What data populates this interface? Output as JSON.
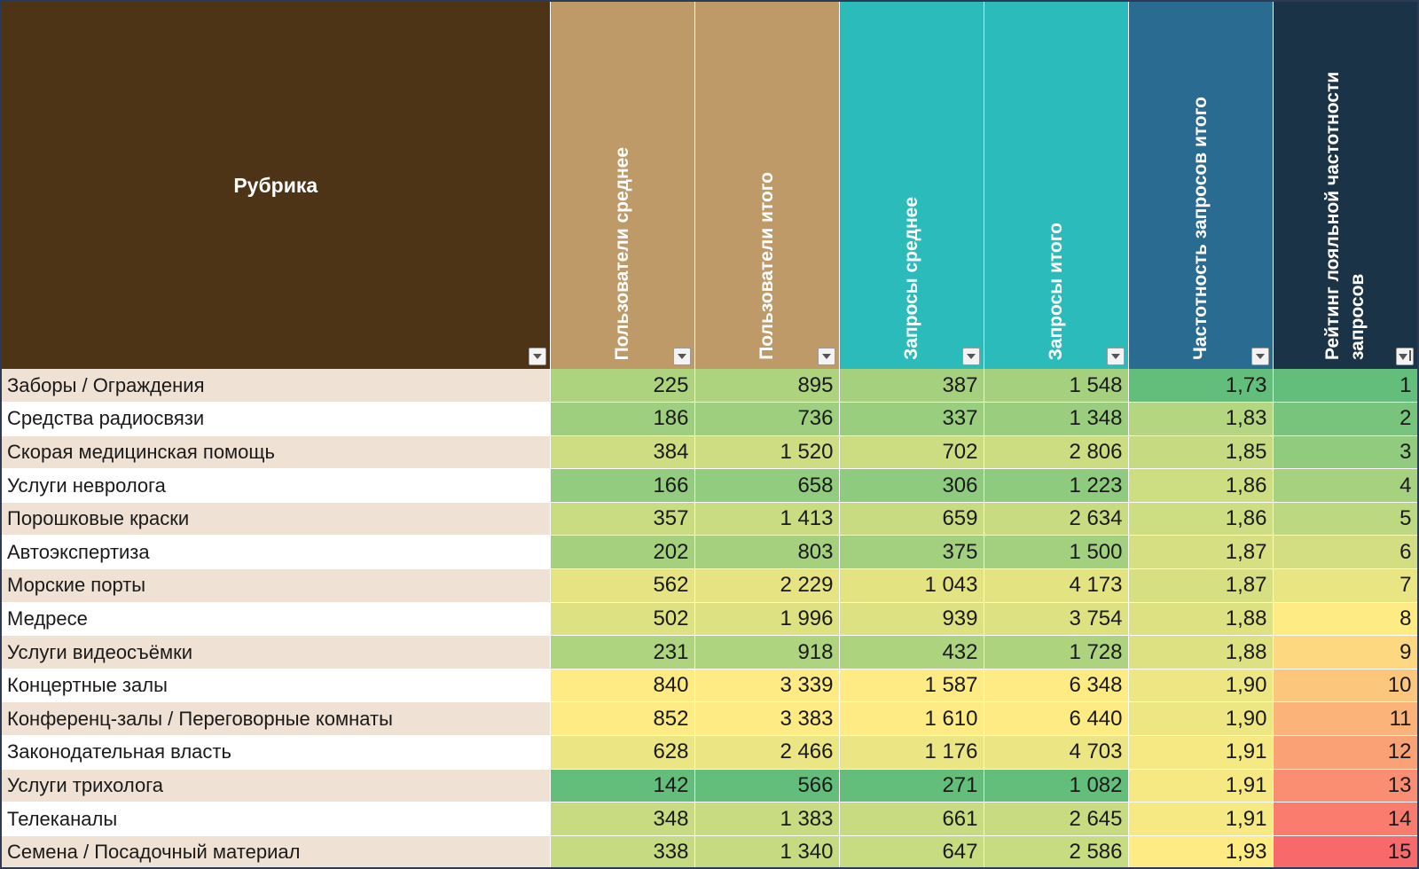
{
  "headers": {
    "rubric": "Рубрика",
    "users_avg": "Пользователи среднее",
    "users_total": "Пользователи итого",
    "req_avg": "Запросы среднее",
    "req_total": "Запросы итого",
    "freq_total": "Частотность запросов итого",
    "rank": "Рейтинг лояльной частотности запросов"
  },
  "filter_icons": [
    "dropdown-arrow-icon",
    "sort-filter-icon"
  ],
  "colors": {
    "header_rubric": "#4e3417",
    "header_users": "#be9a69",
    "header_requests": "#2bbbbb",
    "header_frequency": "#2a6b91",
    "header_rank": "#1a3346",
    "scale_green": "#63be7b",
    "scale_yellow": "#ffeb84",
    "scale_red": "#f8696b"
  },
  "rows": [
    {
      "name": "Заборы / Ограждения",
      "users_avg": "225",
      "users_total": "895",
      "req_avg": "387",
      "req_total": "1 548",
      "freq": "1,73",
      "rank": "1"
    },
    {
      "name": "Средства радиосвязи",
      "users_avg": "186",
      "users_total": "736",
      "req_avg": "337",
      "req_total": "1 348",
      "freq": "1,83",
      "rank": "2"
    },
    {
      "name": "Скорая медицинская помощь",
      "users_avg": "384",
      "users_total": "1 520",
      "req_avg": "702",
      "req_total": "2 806",
      "freq": "1,85",
      "rank": "3"
    },
    {
      "name": "Услуги невролога",
      "users_avg": "166",
      "users_total": "658",
      "req_avg": "306",
      "req_total": "1 223",
      "freq": "1,86",
      "rank": "4"
    },
    {
      "name": "Порошковые краски",
      "users_avg": "357",
      "users_total": "1 413",
      "req_avg": "659",
      "req_total": "2 634",
      "freq": "1,86",
      "rank": "5"
    },
    {
      "name": "Автоэкспертиза",
      "users_avg": "202",
      "users_total": "803",
      "req_avg": "375",
      "req_total": "1 500",
      "freq": "1,87",
      "rank": "6"
    },
    {
      "name": "Морские порты",
      "users_avg": "562",
      "users_total": "2 229",
      "req_avg": "1 043",
      "req_total": "4 173",
      "freq": "1,87",
      "rank": "7"
    },
    {
      "name": "Медресе",
      "users_avg": "502",
      "users_total": "1 996",
      "req_avg": "939",
      "req_total": "3 754",
      "freq": "1,88",
      "rank": "8"
    },
    {
      "name": "Услуги видеосъёмки",
      "users_avg": "231",
      "users_total": "918",
      "req_avg": "432",
      "req_total": "1 728",
      "freq": "1,88",
      "rank": "9"
    },
    {
      "name": "Концертные залы",
      "users_avg": "840",
      "users_total": "3 339",
      "req_avg": "1 587",
      "req_total": "6 348",
      "freq": "1,90",
      "rank": "10"
    },
    {
      "name": "Конференц-залы / Переговорные комнаты",
      "users_avg": "852",
      "users_total": "3 383",
      "req_avg": "1 610",
      "req_total": "6 440",
      "freq": "1,90",
      "rank": "11"
    },
    {
      "name": "Законодательная власть",
      "users_avg": "628",
      "users_total": "2 466",
      "req_avg": "1 176",
      "req_total": "4 703",
      "freq": "1,91",
      "rank": "12"
    },
    {
      "name": "Услуги трихолога",
      "users_avg": "142",
      "users_total": "566",
      "req_avg": "271",
      "req_total": "1 082",
      "freq": "1,91",
      "rank": "13"
    },
    {
      "name": "Телеканалы",
      "users_avg": "348",
      "users_total": "1 383",
      "req_avg": "661",
      "req_total": "2 645",
      "freq": "1,91",
      "rank": "14"
    },
    {
      "name": "Семена / Посадочный материал",
      "users_avg": "338",
      "users_total": "1 340",
      "req_avg": "647",
      "req_total": "2 586",
      "freq": "1,93",
      "rank": "15"
    }
  ]
}
